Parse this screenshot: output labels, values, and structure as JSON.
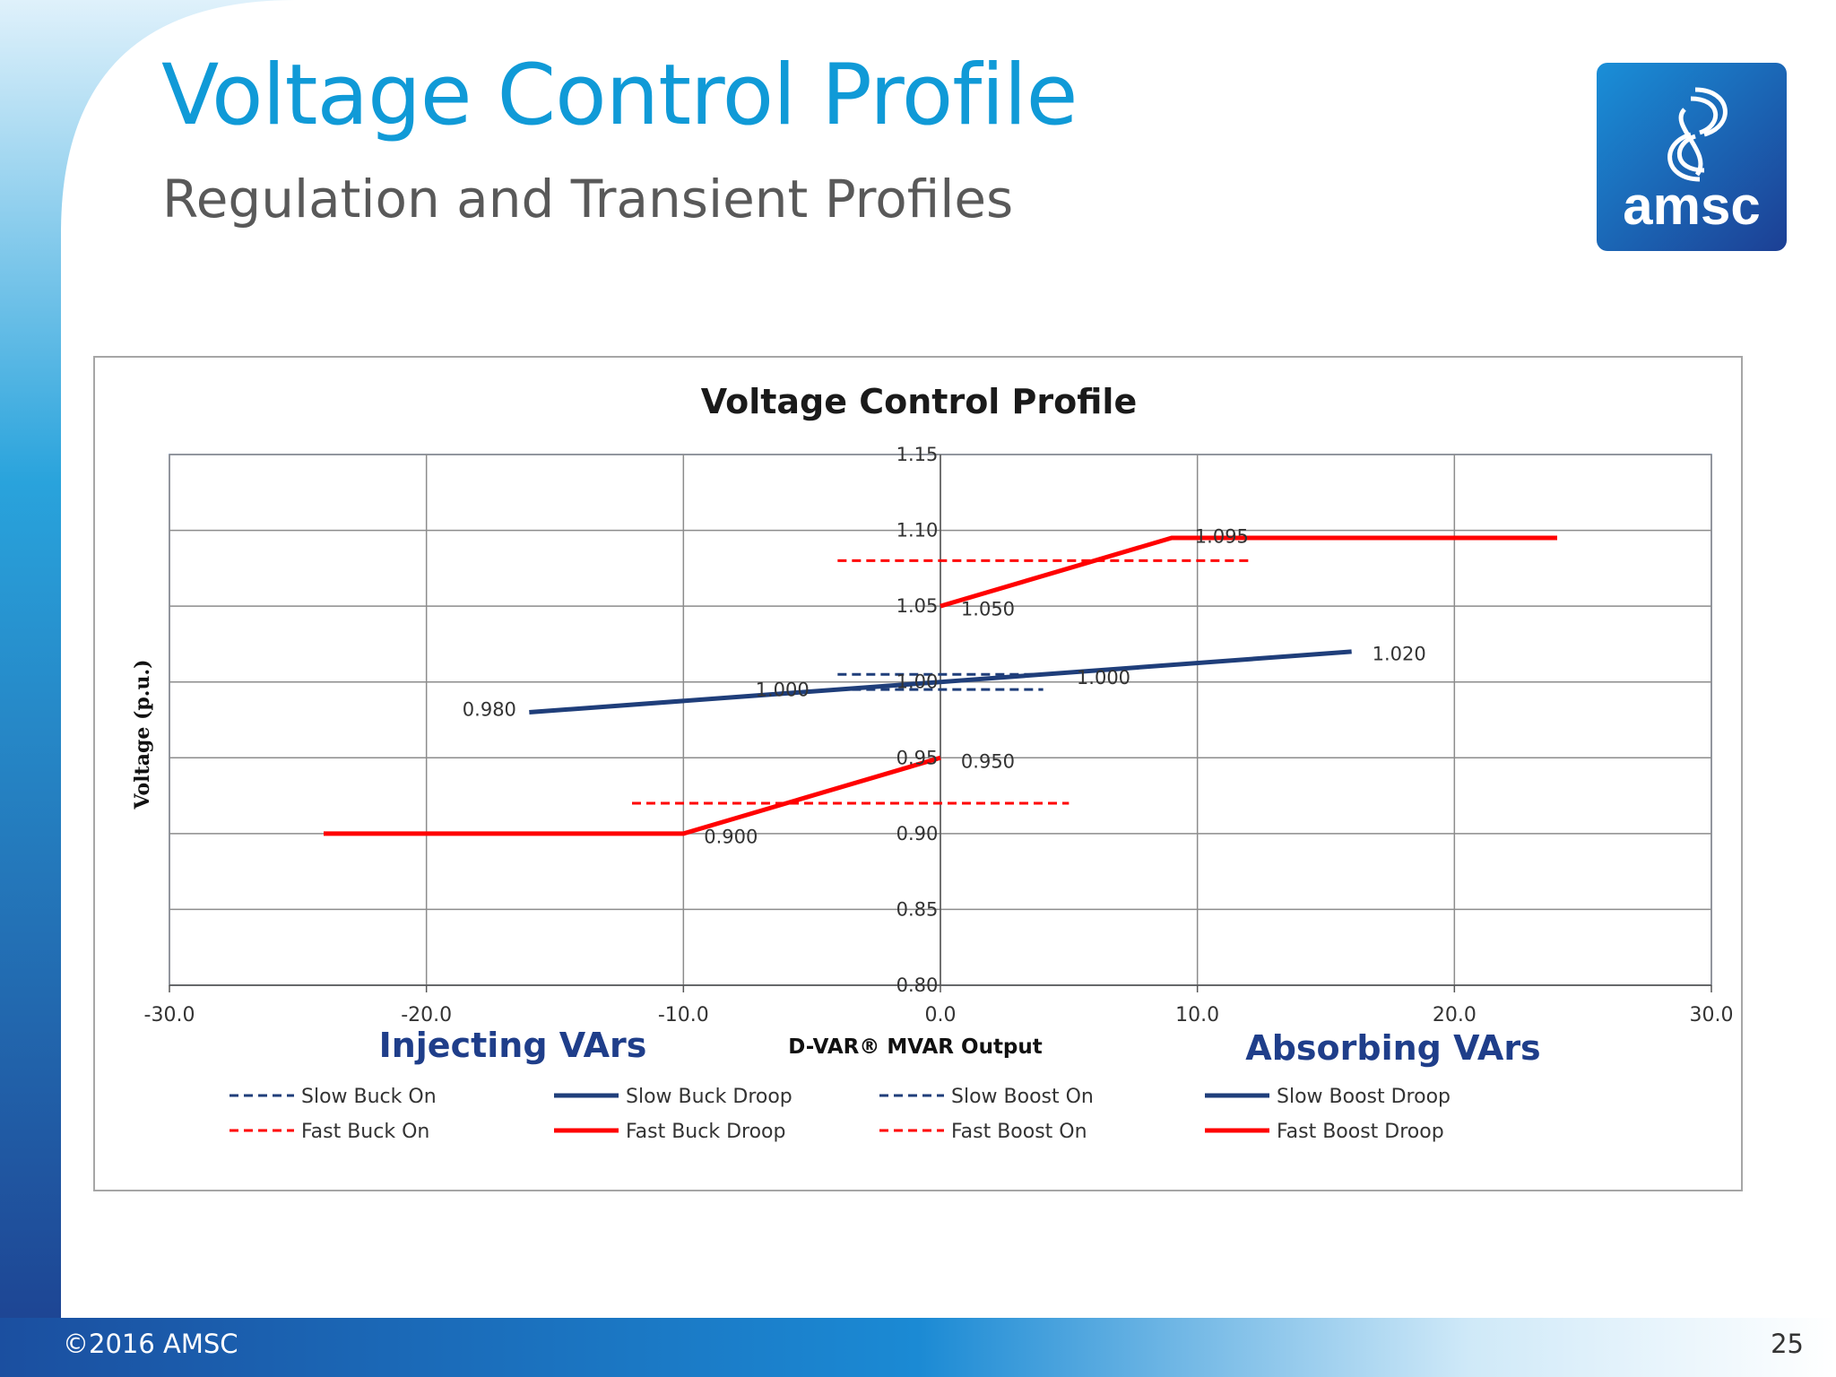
{
  "slide": {
    "title": "Voltage Control Profile",
    "subtitle": "Regulation and Transient Profiles",
    "footer_left": "©2016 AMSC",
    "page_number": "25",
    "logo_text": "amsc",
    "accent_color": "#109ad7",
    "footer_band_color": "#1b5fae"
  },
  "chart_data": {
    "type": "line",
    "title": "Voltage Control Profile",
    "xlabel": "D-VAR® MVAR Output",
    "ylabel": "Voltage (p.u.)",
    "xlim": [
      -30,
      30
    ],
    "ylim": [
      0.8,
      1.15
    ],
    "x_ticks": [
      "-30.0",
      "-20.0",
      "-10.0",
      "0.0",
      "10.0",
      "20.0",
      "30.0"
    ],
    "y_ticks": [
      "0.80",
      "0.85",
      "0.90",
      "0.95",
      "1.00",
      "1.05",
      "1.10",
      "1.15"
    ],
    "grid": true,
    "legend_position": "bottom",
    "annotations_side": {
      "left": "Injecting VArs",
      "right": "Absorbing VArs"
    },
    "series": [
      {
        "name": "Slow Buck On",
        "color": "#1f3e7a",
        "dash": true,
        "x": [
          -4,
          4
        ],
        "y": [
          1.005,
          1.005
        ]
      },
      {
        "name": "Slow Buck Droop",
        "color": "#1f3e7a",
        "dash": false,
        "x": [
          -16,
          0
        ],
        "y": [
          0.98,
          1.0
        ]
      },
      {
        "name": "Slow Boost On",
        "color": "#1f3e7a",
        "dash": true,
        "x": [
          -4,
          4
        ],
        "y": [
          0.995,
          0.995
        ]
      },
      {
        "name": "Slow Boost Droop",
        "color": "#1f3e7a",
        "dash": false,
        "x": [
          0,
          16
        ],
        "y": [
          1.0,
          1.02
        ]
      },
      {
        "name": "Fast Buck On",
        "color": "#ff0000",
        "dash": true,
        "x": [
          -4,
          12
        ],
        "y": [
          1.08,
          1.08
        ]
      },
      {
        "name": "Fast Buck Droop",
        "color": "#ff0000",
        "dash": false,
        "x": [
          -24,
          -10,
          0
        ],
        "y": [
          0.9,
          0.9,
          0.95
        ]
      },
      {
        "name": "Fast Boost On",
        "color": "#ff0000",
        "dash": true,
        "x": [
          -12,
          5
        ],
        "y": [
          0.92,
          0.92
        ]
      },
      {
        "name": "Fast Boost Droop",
        "color": "#ff0000",
        "dash": false,
        "x": [
          0,
          9,
          24
        ],
        "y": [
          1.05,
          1.095,
          1.095
        ]
      }
    ],
    "data_labels": [
      {
        "text": "1.095",
        "x": 9.9,
        "y": 1.0965
      },
      {
        "text": "1.050",
        "x": 0.8,
        "y": 1.0485
      },
      {
        "text": "1.020",
        "x": 16.8,
        "y": 1.019
      },
      {
        "text": "1.000",
        "x": 5.3,
        "y": 1.0035
      },
      {
        "text": "1.000",
        "x": -7.2,
        "y": 0.9955
      },
      {
        "text": "0.980",
        "x": -18.6,
        "y": 0.9825
      },
      {
        "text": "0.950",
        "x": 0.8,
        "y": 0.948
      },
      {
        "text": "0.900",
        "x": -9.2,
        "y": 0.8985
      }
    ]
  }
}
